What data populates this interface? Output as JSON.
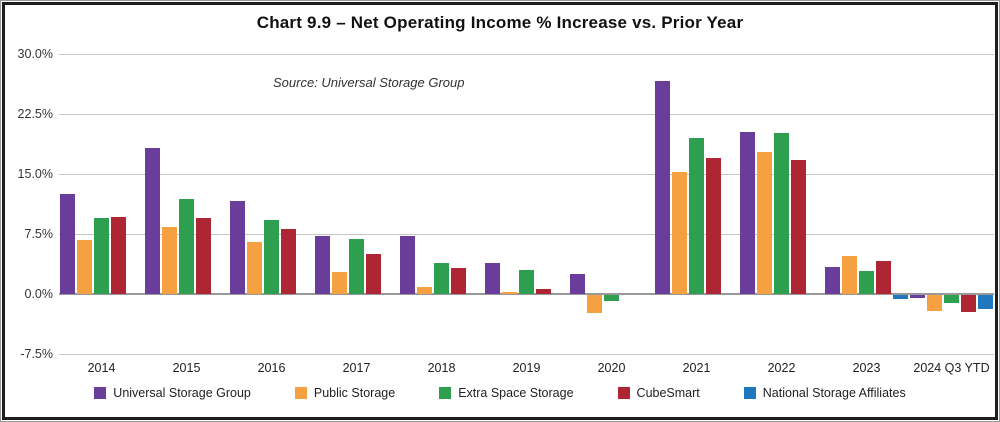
{
  "chart_data": {
    "type": "bar",
    "title": "Chart 9.9 – Net Operating Income % Increase vs. Prior Year",
    "source_note": "Source: Universal Storage Group",
    "ylabel": "",
    "xlabel": "",
    "ylim": [
      -7.5,
      30
    ],
    "grid": true,
    "legend_position": "bottom",
    "y_ticks": [
      {
        "value": 30,
        "label": "30.0%"
      },
      {
        "value": 22.5,
        "label": "22.5%"
      },
      {
        "value": 15,
        "label": "15.0%"
      },
      {
        "value": 7.5,
        "label": "7.5%"
      },
      {
        "value": 0,
        "label": "0.0%"
      },
      {
        "value": -7.5,
        "label": "-7.5%"
      }
    ],
    "categories": [
      "2014",
      "2015",
      "2016",
      "2017",
      "2018",
      "2019",
      "2020",
      "2021",
      "2022",
      "2023",
      "2024 Q3 YTD"
    ],
    "series": [
      {
        "name": "Universal Storage Group",
        "color": "#6A3D9B",
        "values": [
          12.5,
          18.3,
          11.6,
          7.3,
          7.2,
          3.9,
          2.5,
          26.6,
          20.3,
          3.4,
          -0.4
        ]
      },
      {
        "name": "Public Storage",
        "color": "#F5A142",
        "values": [
          6.8,
          8.4,
          6.5,
          2.8,
          0.9,
          0.3,
          -2.3,
          15.3,
          17.8,
          4.8,
          -2.0
        ]
      },
      {
        "name": "Extra Space Storage",
        "color": "#2E9E4F",
        "values": [
          9.5,
          11.9,
          9.3,
          6.9,
          3.9,
          3.0,
          -0.8,
          19.5,
          20.1,
          2.9,
          -1.0
        ]
      },
      {
        "name": "CubeSmart",
        "color": "#AE2633",
        "values": [
          9.6,
          9.5,
          8.1,
          5.0,
          3.3,
          0.6,
          null,
          17.0,
          16.7,
          4.1,
          -2.1
        ]
      },
      {
        "name": "National Storage Affiliates",
        "color": "#1F78BE",
        "values": [
          null,
          null,
          null,
          null,
          null,
          null,
          null,
          null,
          null,
          -0.5,
          -1.8
        ]
      }
    ]
  }
}
